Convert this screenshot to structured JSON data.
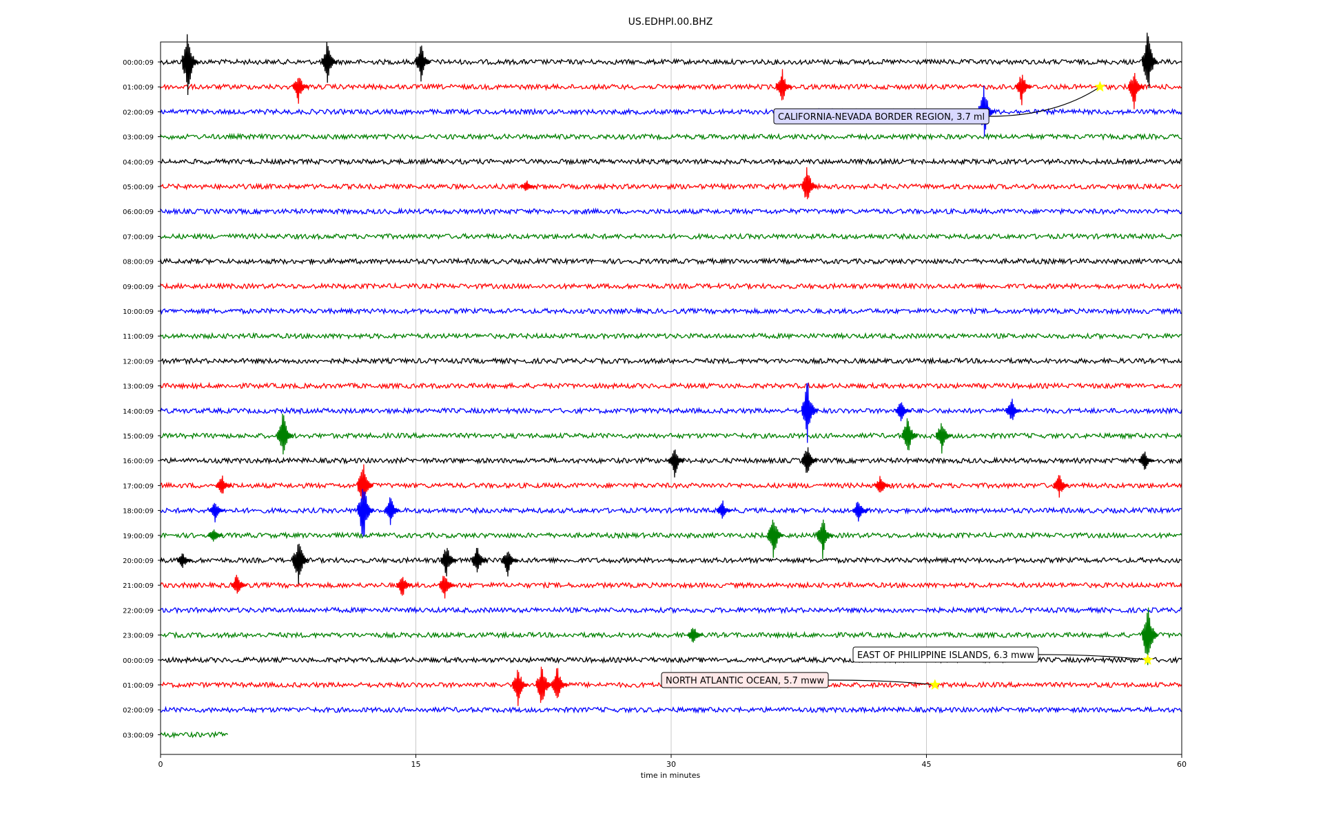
{
  "chart_data": {
    "type": "line",
    "title": "US.EDHPI.00.BHZ",
    "xlabel": "time in minutes",
    "ylabel": "",
    "xlim": [
      0,
      60
    ],
    "x_ticks": [
      0,
      15,
      30,
      45,
      60
    ],
    "x_tick_labels": [
      "0",
      "15",
      "30",
      "45",
      "60"
    ],
    "grid": "vertical",
    "legend": "none",
    "trace_colors": [
      "#000000",
      "#ff0000",
      "#0000ff",
      "#008000"
    ],
    "rows": [
      {
        "label": "00:00:09",
        "color": "#000000",
        "end_minute": 60
      },
      {
        "label": "01:00:09",
        "color": "#ff0000",
        "end_minute": 60
      },
      {
        "label": "02:00:09",
        "color": "#0000ff",
        "end_minute": 60
      },
      {
        "label": "03:00:09",
        "color": "#008000",
        "end_minute": 60
      },
      {
        "label": "04:00:09",
        "color": "#000000",
        "end_minute": 60
      },
      {
        "label": "05:00:09",
        "color": "#ff0000",
        "end_minute": 60
      },
      {
        "label": "06:00:09",
        "color": "#0000ff",
        "end_minute": 60
      },
      {
        "label": "07:00:09",
        "color": "#008000",
        "end_minute": 60
      },
      {
        "label": "08:00:09",
        "color": "#000000",
        "end_minute": 60
      },
      {
        "label": "09:00:09",
        "color": "#ff0000",
        "end_minute": 60
      },
      {
        "label": "10:00:09",
        "color": "#0000ff",
        "end_minute": 60
      },
      {
        "label": "11:00:09",
        "color": "#008000",
        "end_minute": 60
      },
      {
        "label": "12:00:09",
        "color": "#000000",
        "end_minute": 60
      },
      {
        "label": "13:00:09",
        "color": "#ff0000",
        "end_minute": 60
      },
      {
        "label": "14:00:09",
        "color": "#0000ff",
        "end_minute": 60
      },
      {
        "label": "15:00:09",
        "color": "#008000",
        "end_minute": 60
      },
      {
        "label": "16:00:09",
        "color": "#000000",
        "end_minute": 60
      },
      {
        "label": "17:00:09",
        "color": "#ff0000",
        "end_minute": 60
      },
      {
        "label": "18:00:09",
        "color": "#0000ff",
        "end_minute": 60
      },
      {
        "label": "19:00:09",
        "color": "#008000",
        "end_minute": 60
      },
      {
        "label": "20:00:09",
        "color": "#000000",
        "end_minute": 60
      },
      {
        "label": "21:00:09",
        "color": "#ff0000",
        "end_minute": 60
      },
      {
        "label": "22:00:09",
        "color": "#0000ff",
        "end_minute": 60
      },
      {
        "label": "23:00:09",
        "color": "#008000",
        "end_minute": 60
      },
      {
        "label": "00:00:09",
        "color": "#000000",
        "end_minute": 60
      },
      {
        "label": "01:00:09",
        "color": "#ff0000",
        "end_minute": 60
      },
      {
        "label": "02:00:09",
        "color": "#0000ff",
        "end_minute": 60
      },
      {
        "label": "03:00:09",
        "color": "#008000",
        "end_minute": 4
      }
    ],
    "spikes": [
      {
        "row": 0,
        "minute": 1.6,
        "amp": 1.6
      },
      {
        "row": 0,
        "minute": 9.8,
        "amp": 1.0
      },
      {
        "row": 0,
        "minute": 15.3,
        "amp": 0.9
      },
      {
        "row": 0,
        "minute": 58.0,
        "amp": 1.6
      },
      {
        "row": 1,
        "minute": 8.1,
        "amp": 0.7
      },
      {
        "row": 1,
        "minute": 36.5,
        "amp": 0.9
      },
      {
        "row": 1,
        "minute": 50.6,
        "amp": 0.8
      },
      {
        "row": 1,
        "minute": 57.2,
        "amp": 0.9
      },
      {
        "row": 2,
        "minute": 48.4,
        "amp": 1.4
      },
      {
        "row": 5,
        "minute": 21.5,
        "amp": 0.3
      },
      {
        "row": 5,
        "minute": 38.0,
        "amp": 1.0
      },
      {
        "row": 14,
        "minute": 38.0,
        "amp": 1.4
      },
      {
        "row": 14,
        "minute": 43.5,
        "amp": 0.5
      },
      {
        "row": 14,
        "minute": 50.0,
        "amp": 0.6
      },
      {
        "row": 15,
        "minute": 7.2,
        "amp": 1.1
      },
      {
        "row": 15,
        "minute": 43.9,
        "amp": 1.0
      },
      {
        "row": 15,
        "minute": 45.9,
        "amp": 0.8
      },
      {
        "row": 16,
        "minute": 30.2,
        "amp": 0.8
      },
      {
        "row": 16,
        "minute": 38.0,
        "amp": 0.8
      },
      {
        "row": 16,
        "minute": 57.8,
        "amp": 0.5
      },
      {
        "row": 17,
        "minute": 3.6,
        "amp": 0.5
      },
      {
        "row": 17,
        "minute": 11.9,
        "amp": 1.2
      },
      {
        "row": 17,
        "minute": 42.3,
        "amp": 0.5
      },
      {
        "row": 17,
        "minute": 52.8,
        "amp": 0.6
      },
      {
        "row": 18,
        "minute": 3.2,
        "amp": 0.5
      },
      {
        "row": 18,
        "minute": 11.9,
        "amp": 1.6
      },
      {
        "row": 18,
        "minute": 13.5,
        "amp": 0.7
      },
      {
        "row": 18,
        "minute": 33.0,
        "amp": 0.5
      },
      {
        "row": 18,
        "minute": 41.0,
        "amp": 0.6
      },
      {
        "row": 19,
        "minute": 3.1,
        "amp": 0.4
      },
      {
        "row": 19,
        "minute": 36.0,
        "amp": 1.2
      },
      {
        "row": 19,
        "minute": 38.9,
        "amp": 1.0
      },
      {
        "row": 20,
        "minute": 1.3,
        "amp": 0.4
      },
      {
        "row": 20,
        "minute": 8.1,
        "amp": 1.2
      },
      {
        "row": 20,
        "minute": 16.8,
        "amp": 0.8
      },
      {
        "row": 20,
        "minute": 18.6,
        "amp": 0.8
      },
      {
        "row": 20,
        "minute": 20.4,
        "amp": 0.7
      },
      {
        "row": 21,
        "minute": 4.5,
        "amp": 0.6
      },
      {
        "row": 21,
        "minute": 14.2,
        "amp": 0.6
      },
      {
        "row": 21,
        "minute": 16.7,
        "amp": 0.7
      },
      {
        "row": 23,
        "minute": 31.3,
        "amp": 0.5
      },
      {
        "row": 23,
        "minute": 58.0,
        "amp": 1.7
      },
      {
        "row": 25,
        "minute": 21.0,
        "amp": 0.9
      },
      {
        "row": 25,
        "minute": 22.4,
        "amp": 1.1
      },
      {
        "row": 25,
        "minute": 23.3,
        "amp": 1.0
      }
    ],
    "events": [
      {
        "row": 1,
        "minute": 55.2,
        "label": "CALIFORNIA-NEVADA BORDER REGION, 3.7 ml",
        "box_bg": "#d9d9ff"
      },
      {
        "row": 25,
        "minute": 45.5,
        "label": "NORTH ATLANTIC OCEAN, 5.7 mww",
        "box_bg": "#ffe9e9"
      },
      {
        "row": 24,
        "minute": 58.0,
        "label": "EAST OF PHILIPPINE ISLANDS, 6.3 mww",
        "box_bg": "#ffffff"
      }
    ],
    "star_color": "#ffff00"
  }
}
